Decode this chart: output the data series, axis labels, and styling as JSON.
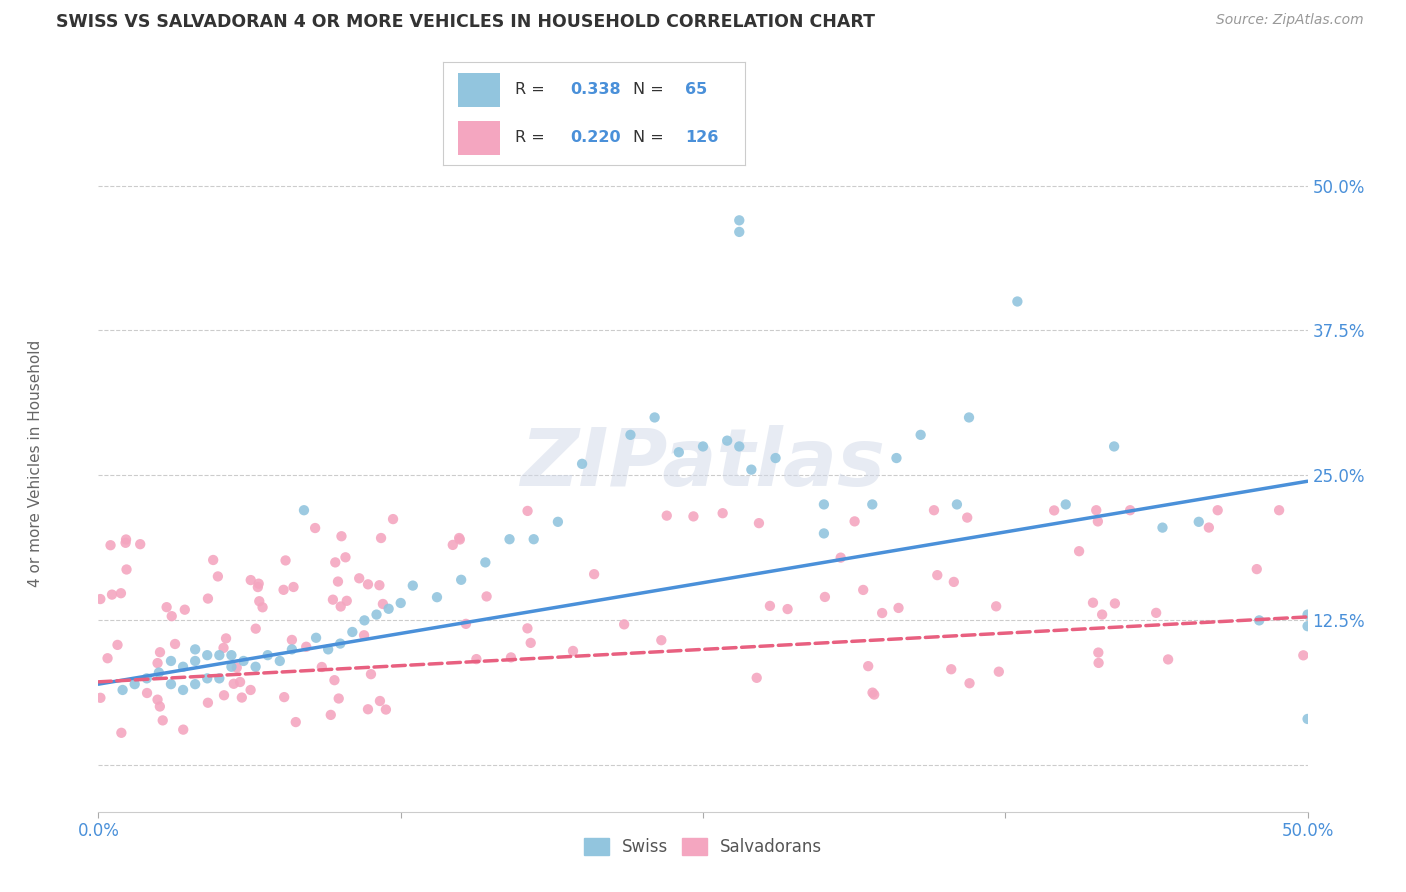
{
  "title": "SWISS VS SALVADORAN 4 OR MORE VEHICLES IN HOUSEHOLD CORRELATION CHART",
  "source": "Source: ZipAtlas.com",
  "ylabel": "4 or more Vehicles in Household",
  "xlim": [
    0.0,
    0.5
  ],
  "ylim": [
    -0.04,
    0.56
  ],
  "swiss_color": "#92c5de",
  "salvadoran_color": "#f4a6c0",
  "swiss_line_color": "#4a90d9",
  "salvadoran_line_color": "#e86080",
  "swiss_R": 0.338,
  "swiss_N": 65,
  "salvadoran_R": 0.22,
  "salvadoran_N": 126,
  "watermark": "ZIPatlas",
  "background_color": "#ffffff",
  "grid_color": "#cccccc",
  "title_color": "#333333",
  "source_color": "#999999",
  "tick_color": "#4a90d9",
  "ylabel_color": "#666666",
  "swiss_line_start_y": 0.07,
  "swiss_line_end_y": 0.245,
  "salvadoran_line_start_y": 0.072,
  "salvadoran_line_end_y": 0.128
}
